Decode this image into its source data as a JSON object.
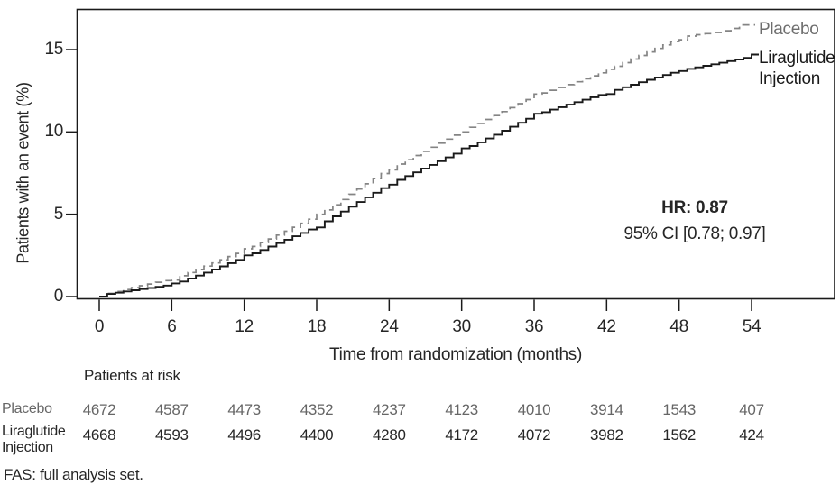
{
  "chart_data": {
    "type": "line",
    "subtype": "kaplan-meier-cumulative-incidence",
    "title": "",
    "xlabel": "Time from randomization (months)",
    "ylabel": "Patients with an event (%)",
    "xlim": [
      0,
      61
    ],
    "ylim": [
      0,
      17.5
    ],
    "xticks": [
      0,
      6,
      12,
      18,
      24,
      30,
      36,
      42,
      48,
      54
    ],
    "yticks": [
      0,
      5,
      10,
      15
    ],
    "grid": false,
    "frame": "full-box",
    "legend_position": "inside-right-at-curve-ends",
    "colors": {
      "placebo": "#848484",
      "liraglutide": "#1a1a1a",
      "frame": "#1a1a1a"
    },
    "series": [
      {
        "name": "Placebo",
        "line_style": "dashed",
        "color": "#848484",
        "x": [
          0,
          6,
          12,
          18,
          24,
          30,
          36,
          42,
          48,
          53
        ],
        "y": [
          0,
          1.0,
          2.9,
          5.0,
          7.7,
          10.0,
          12.3,
          13.8,
          15.6,
          16.5
        ]
      },
      {
        "name": "Liraglutide Injection",
        "line_style": "solid",
        "color": "#1a1a1a",
        "x": [
          0,
          6,
          12,
          18,
          24,
          30,
          36,
          42,
          48,
          54
        ],
        "y": [
          0,
          0.8,
          2.5,
          4.2,
          6.8,
          9.0,
          11.1,
          12.3,
          13.7,
          14.7
        ]
      }
    ],
    "annotation": {
      "line1": "HR: 0.87",
      "line2": "95% CI [0.78; 0.97]"
    }
  },
  "at_risk": {
    "header": "Patients at risk",
    "months": [
      0,
      6,
      12,
      18,
      24,
      30,
      36,
      42,
      48,
      54
    ],
    "rows": [
      {
        "label": "Placebo",
        "emphasis": "gray",
        "values": [
          "4672",
          "4587",
          "4473",
          "4352",
          "4237",
          "4123",
          "4010",
          "3914",
          "1543",
          "407"
        ]
      },
      {
        "label": "Liraglutide Injection",
        "emphasis": "black",
        "values": [
          "4668",
          "4593",
          "4496",
          "4400",
          "4280",
          "4172",
          "4072",
          "3982",
          "1562",
          "424"
        ]
      }
    ]
  },
  "footnote": "FAS: full analysis set."
}
